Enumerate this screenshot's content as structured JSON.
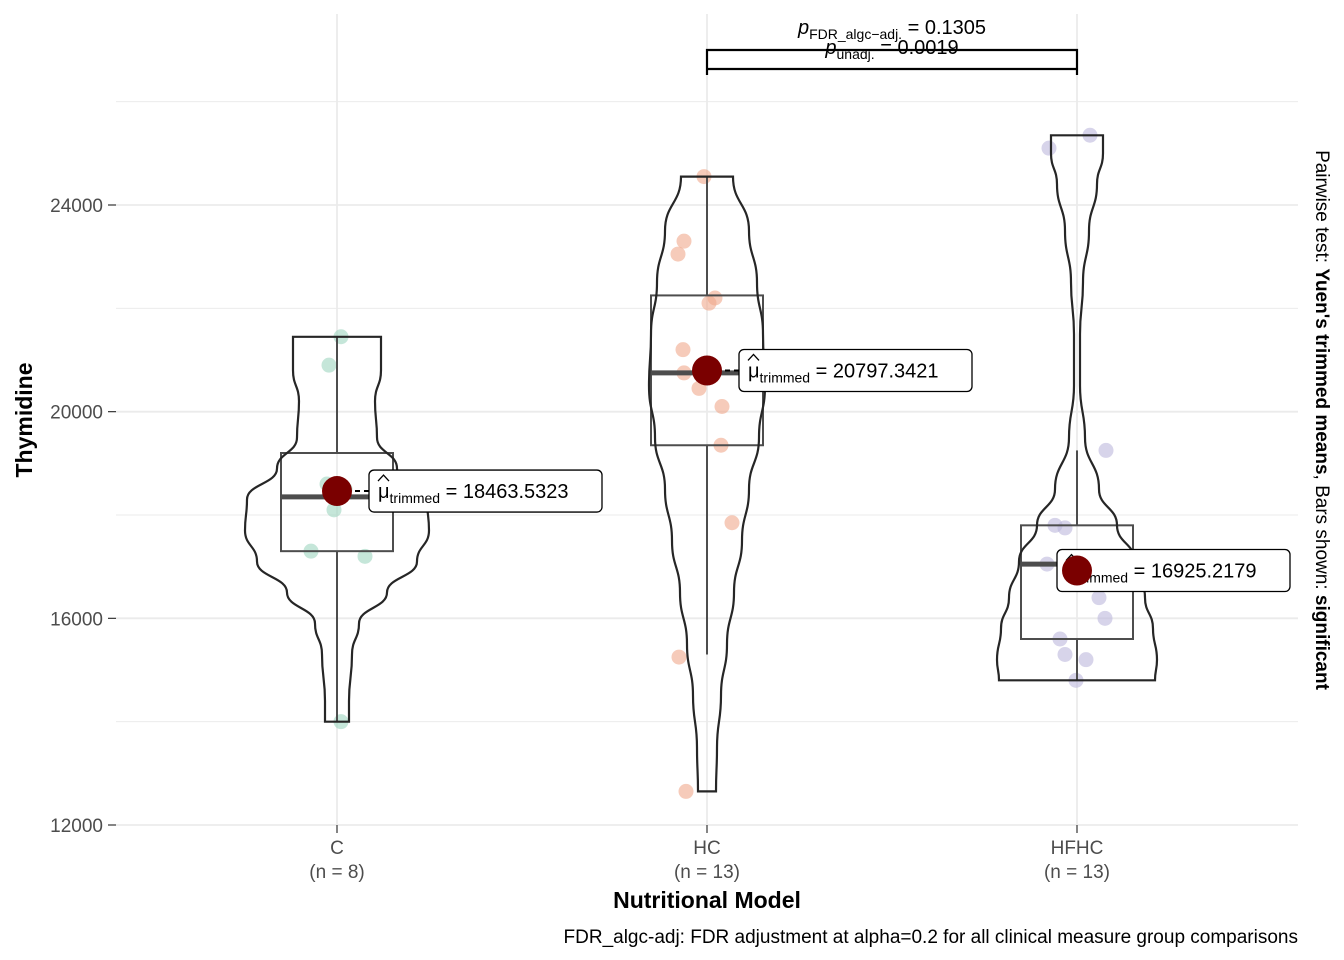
{
  "chart_data": {
    "type": "violin",
    "xlabel": "Nutritional Model",
    "ylabel": "Thymidine",
    "ylim": [
      11700,
      26300
    ],
    "yticks": [
      12000,
      16000,
      20000,
      24000
    ],
    "grid": true,
    "categories": [
      {
        "name": "C",
        "n_label": "(n = 8)",
        "color": "#9fd5c0",
        "points": [
          21450,
          20900,
          18600,
          18500,
          18100,
          17300,
          17200,
          14000
        ],
        "box": {
          "q1": 17300,
          "median": 18350,
          "q3": 19200,
          "whisker_low": 14000,
          "whisker_high": 21450
        },
        "violin_range": [
          14000,
          21450
        ],
        "trimmed_mean": 18463.5323,
        "trimmed_mean_label": "18463.5323"
      },
      {
        "name": "HC",
        "n_label": "(n = 13)",
        "color": "#f0a88c",
        "points": [
          24550,
          23300,
          23050,
          22200,
          22100,
          21200,
          20750,
          20450,
          20100,
          19350,
          17850,
          15250,
          12650
        ],
        "box": {
          "q1": 19350,
          "median": 20750,
          "q3": 22250,
          "whisker_low": 15300,
          "whisker_high": 24550
        },
        "violin_range": [
          12650,
          24550
        ],
        "trimmed_mean": 20797.3421,
        "trimmed_mean_label": "20797.3421"
      },
      {
        "name": "HFHC",
        "n_label": "(n = 13)",
        "color": "#bdb8dc",
        "points": [
          25350,
          25100,
          19250,
          17800,
          17750,
          17050,
          16400,
          16000,
          15600,
          15300,
          15200,
          14800,
          16900
        ],
        "box": {
          "q1": 15600,
          "median": 17050,
          "q3": 17800,
          "whisker_low": 14800,
          "whisker_high": 19250
        },
        "violin_range": [
          14800,
          25350
        ],
        "trimmed_mean": 16925.2179,
        "trimmed_mean_label": "16925.2179"
      }
    ],
    "comparison": {
      "from": "HC",
      "to": "HFHC",
      "p_fdr_label": "FDR_algc−adj.",
      "p_fdr_value": " = 0.1305",
      "p_unadj_label": "unadj.",
      "p_unadj_value": " = 0.0019"
    },
    "mean_label_prefix": "trimmed",
    "mean_symbol": "μ",
    "side_note": {
      "prefix": "Pairwise test: ",
      "test": "Yuen's trimmed means",
      "middle": ", Bars shown: ",
      "bars": "significant"
    },
    "caption": "FDR_algc-adj: FDR adjustment at alpha=0.2 for all clinical measure group comparisons",
    "mean_color": "#7a0000"
  }
}
